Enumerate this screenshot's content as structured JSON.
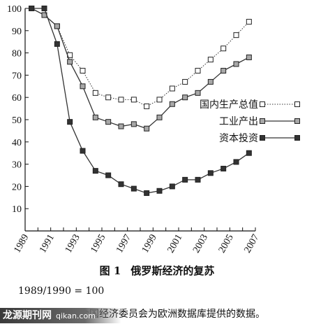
{
  "chart_data": {
    "type": "line",
    "x": [
      1989.5,
      1990.5,
      1991.5,
      1992.5,
      1993.5,
      1994.5,
      1995.5,
      1996.5,
      1997.5,
      1998.5,
      1999.5,
      2000.5,
      2001.5,
      2002.5,
      2003.5,
      2004.5,
      2005.5,
      2006.5
    ],
    "series": [
      {
        "name": "国内生产总值",
        "marker": "open-square",
        "style": "dotted",
        "values": [
          100,
          97,
          92,
          79,
          72,
          62,
          60,
          59,
          59,
          56,
          59,
          64,
          67,
          72,
          77,
          82,
          88,
          94
        ]
      },
      {
        "name": "工业产出",
        "marker": "gray-square",
        "style": "solid",
        "values": [
          100,
          97,
          92,
          76,
          65,
          51,
          49,
          47,
          48,
          46,
          51,
          57,
          60,
          62,
          67,
          72,
          75,
          78
        ]
      },
      {
        "name": "资本投资",
        "marker": "filled-square",
        "style": "solid",
        "values": [
          100,
          100,
          84,
          49,
          36,
          27,
          25,
          21,
          19,
          17,
          18,
          20,
          23,
          23,
          26,
          28,
          31,
          35
        ]
      }
    ],
    "xticks": [
      "1989",
      "1991",
      "1993",
      "1995",
      "1997",
      "1999",
      "2001",
      "2003",
      "2005",
      "2007"
    ],
    "yticks": [
      "10",
      "20",
      "30",
      "40",
      "50",
      "60",
      "70",
      "80",
      "90",
      "100"
    ],
    "xlim": [
      1989,
      2007
    ],
    "ylim": [
      0,
      100
    ],
    "legend_position": "right",
    "grid": false,
    "colors": {
      "line": "#333333",
      "gray_fill": "#a8a8a8",
      "filled": "#333333"
    }
  },
  "caption": {
    "figure": "图 1",
    "title": "俄罗斯经济的复苏"
  },
  "note": "1989/1990 = 100",
  "source": "资料来源：联合国经济委员会为欧洲数据库提供的数据。",
  "watermark": {
    "text": "龙源期刊网",
    "url": "qikan.com"
  }
}
